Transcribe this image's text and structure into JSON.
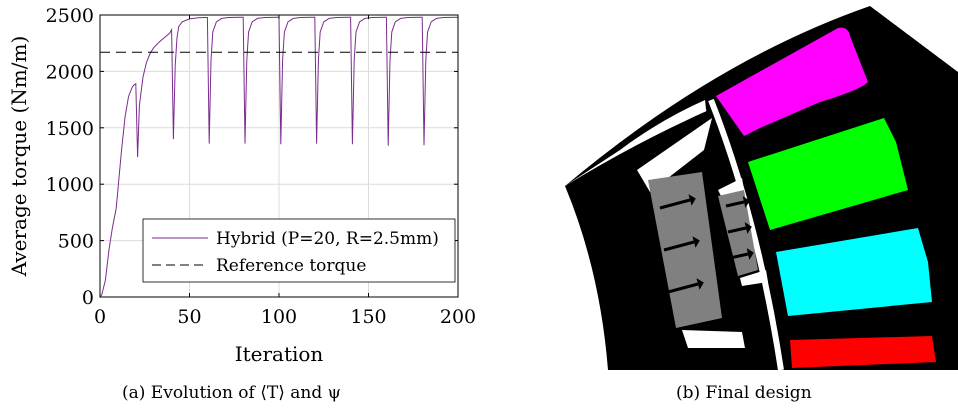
{
  "chart_data": {
    "type": "line",
    "xlabel": "Iteration",
    "ylabel": "Average torque (Nm/m)",
    "xlim": [
      0,
      200
    ],
    "ylim": [
      0,
      2500
    ],
    "xticks": [
      "0",
      "50",
      "100",
      "150",
      "200"
    ],
    "yticks": [
      "0",
      "500",
      "1000",
      "1500",
      "2000",
      "2500"
    ],
    "grid": true,
    "legend_position": "bottom-right",
    "series": [
      {
        "name": "Hybrid (P=20, R=2.5mm)",
        "style": "solid",
        "color": "#7b2d8e",
        "points": [
          [
            0,
            0
          ],
          [
            1,
            20
          ],
          [
            3,
            150
          ],
          [
            5,
            420
          ],
          [
            7,
            620
          ],
          [
            9,
            780
          ],
          [
            10,
            950
          ],
          [
            12,
            1300
          ],
          [
            14,
            1600
          ],
          [
            16,
            1780
          ],
          [
            18,
            1860
          ],
          [
            19,
            1880
          ],
          [
            20,
            1890
          ],
          [
            21,
            1240
          ],
          [
            22,
            1700
          ],
          [
            24,
            1950
          ],
          [
            26,
            2080
          ],
          [
            28,
            2160
          ],
          [
            30,
            2210
          ],
          [
            33,
            2260
          ],
          [
            36,
            2300
          ],
          [
            39,
            2340
          ],
          [
            40,
            2370
          ],
          [
            41,
            1400
          ],
          [
            42,
            2050
          ],
          [
            43,
            2300
          ],
          [
            44,
            2400
          ],
          [
            46,
            2440
          ],
          [
            50,
            2465
          ],
          [
            55,
            2475
          ],
          [
            59,
            2478
          ],
          [
            60,
            2478
          ],
          [
            61,
            1360
          ],
          [
            62,
            2100
          ],
          [
            63,
            2350
          ],
          [
            65,
            2440
          ],
          [
            68,
            2470
          ],
          [
            72,
            2478
          ],
          [
            79,
            2480
          ],
          [
            80,
            2480
          ],
          [
            81,
            1360
          ],
          [
            82,
            2100
          ],
          [
            83,
            2350
          ],
          [
            85,
            2440
          ],
          [
            88,
            2470
          ],
          [
            92,
            2478
          ],
          [
            99,
            2480
          ],
          [
            100,
            2480
          ],
          [
            101,
            1355
          ],
          [
            102,
            2100
          ],
          [
            103,
            2350
          ],
          [
            105,
            2440
          ],
          [
            108,
            2470
          ],
          [
            112,
            2478
          ],
          [
            119,
            2480
          ],
          [
            120,
            2480
          ],
          [
            121,
            1360
          ],
          [
            122,
            2100
          ],
          [
            123,
            2350
          ],
          [
            125,
            2440
          ],
          [
            128,
            2470
          ],
          [
            132,
            2478
          ],
          [
            139,
            2480
          ],
          [
            140,
            2480
          ],
          [
            141,
            1355
          ],
          [
            142,
            2100
          ],
          [
            143,
            2350
          ],
          [
            145,
            2440
          ],
          [
            148,
            2470
          ],
          [
            152,
            2478
          ],
          [
            159,
            2480
          ],
          [
            160,
            2480
          ],
          [
            161,
            1340
          ],
          [
            162,
            2100
          ],
          [
            163,
            2350
          ],
          [
            165,
            2440
          ],
          [
            168,
            2470
          ],
          [
            172,
            2478
          ],
          [
            179,
            2480
          ],
          [
            180,
            2480
          ],
          [
            181,
            1345
          ],
          [
            182,
            2100
          ],
          [
            183,
            2350
          ],
          [
            185,
            2440
          ],
          [
            188,
            2470
          ],
          [
            192,
            2478
          ],
          [
            200,
            2480
          ]
        ]
      },
      {
        "name": "Reference torque",
        "style": "dashed",
        "color": "#000000",
        "points": [
          [
            0,
            2170
          ],
          [
            200,
            2170
          ]
        ]
      }
    ]
  },
  "captions": {
    "a": "(a) Evolution of ⟨T⟩ and ψ",
    "b": "(b) Final design"
  },
  "design": {
    "colors": {
      "background": "#000000",
      "gap": "#ffffff",
      "magnet_region": "#808080",
      "phase_1": "#ff00ff",
      "phase_2": "#00ff00",
      "phase_3": "#00ffff",
      "phase_4": "#ff0000"
    },
    "icons": [
      "magnetization-arrow"
    ]
  }
}
